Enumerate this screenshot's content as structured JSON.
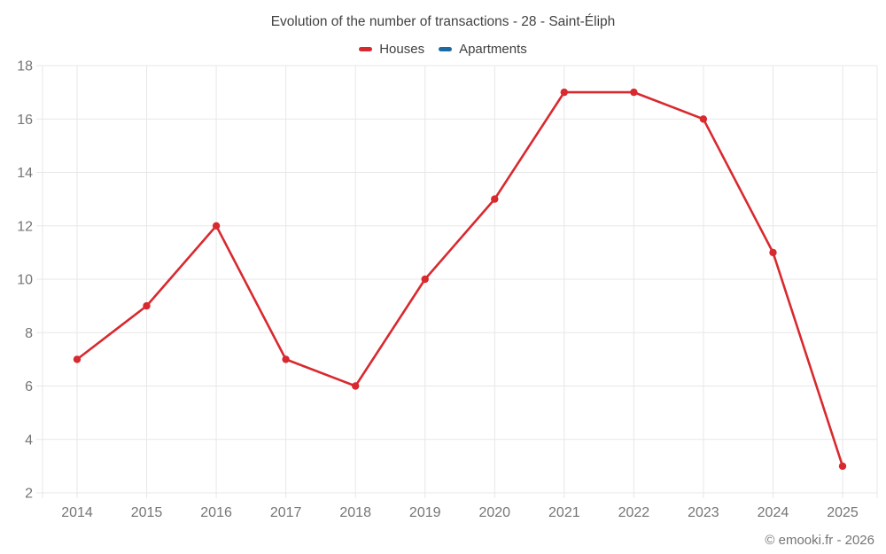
{
  "header": {
    "title": "Evolution of the number of transactions - 28 - Saint-Éliph"
  },
  "legend": {
    "items": [
      {
        "label": "Houses",
        "color": "#d8292f"
      },
      {
        "label": "Apartments",
        "color": "#1a6ba3"
      }
    ]
  },
  "footer": {
    "copyright": "© emooki.fr - 2026"
  },
  "chart_data": {
    "type": "line",
    "title": "Evolution of the number of transactions - 28 - Saint-Éliph",
    "categories": [
      "2014",
      "2015",
      "2016",
      "2017",
      "2018",
      "2019",
      "2020",
      "2021",
      "2022",
      "2023",
      "2024",
      "2025"
    ],
    "series": [
      {
        "name": "Houses",
        "color": "#d8292f",
        "values": [
          7,
          9,
          12,
          7,
          6,
          10,
          13,
          17,
          17,
          16,
          11,
          3
        ]
      },
      {
        "name": "Apartments",
        "color": "#1a6ba3",
        "values": []
      }
    ],
    "xlabel": "",
    "ylabel": "",
    "ylim": [
      2,
      18
    ],
    "ytick_step": 2,
    "grid": true,
    "legend_position": "top",
    "point_markers": true
  },
  "style": {
    "grid_color": "#e7e7e7",
    "axis_label_color": "#757575",
    "title_color": "#424242",
    "footer_color": "#757575",
    "background": "#ffffff"
  }
}
